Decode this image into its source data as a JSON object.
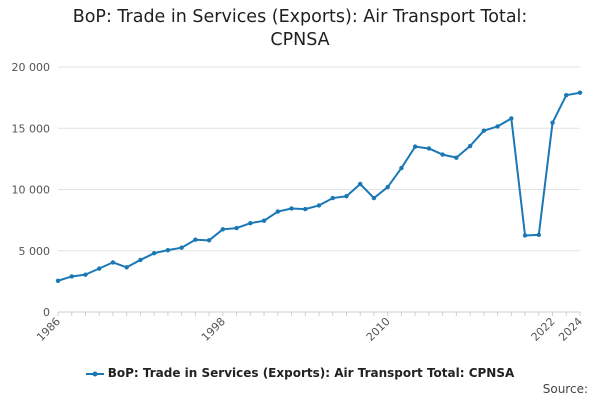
{
  "chart_data": {
    "type": "line",
    "title_lines": [
      "BoP: Trade in Services (Exports): Air Transport Total:",
      "CPNSA"
    ],
    "xlabel": "",
    "ylabel": "",
    "x": [
      1986,
      1987,
      1988,
      1989,
      1990,
      1991,
      1992,
      1993,
      1994,
      1995,
      1996,
      1997,
      1998,
      1999,
      2000,
      2001,
      2002,
      2003,
      2004,
      2005,
      2006,
      2007,
      2008,
      2009,
      2010,
      2011,
      2012,
      2013,
      2014,
      2015,
      2016,
      2017,
      2018,
      2019,
      2020,
      2021,
      2022,
      2023,
      2024
    ],
    "x_tick_labels": [
      "1986",
      "1998",
      "2010",
      "2022",
      "2024"
    ],
    "y_ticks": [
      0,
      5000,
      10000,
      15000,
      20000
    ],
    "y_tick_labels": [
      "0",
      "5 000",
      "10 000",
      "15 000",
      "20 000"
    ],
    "ylim": [
      0,
      20000
    ],
    "grid": true,
    "legend_position": "bottom",
    "series": [
      {
        "name": "BoP: Trade in Services (Exports): Air Transport Total: CPNSA",
        "color": "#1a78b4",
        "values": [
          2550,
          2900,
          3050,
          3550,
          4050,
          3650,
          4250,
          4800,
          5050,
          5250,
          5900,
          5850,
          6750,
          6850,
          7250,
          7450,
          8200,
          8450,
          8400,
          8700,
          9300,
          9450,
          10450,
          9300,
          10200,
          11750,
          13500,
          13350,
          12850,
          12600,
          13550,
          14800,
          15150,
          15800,
          6250,
          6300,
          15450,
          17700,
          17900
        ]
      }
    ]
  },
  "footer": {
    "source_label": "Source:"
  }
}
